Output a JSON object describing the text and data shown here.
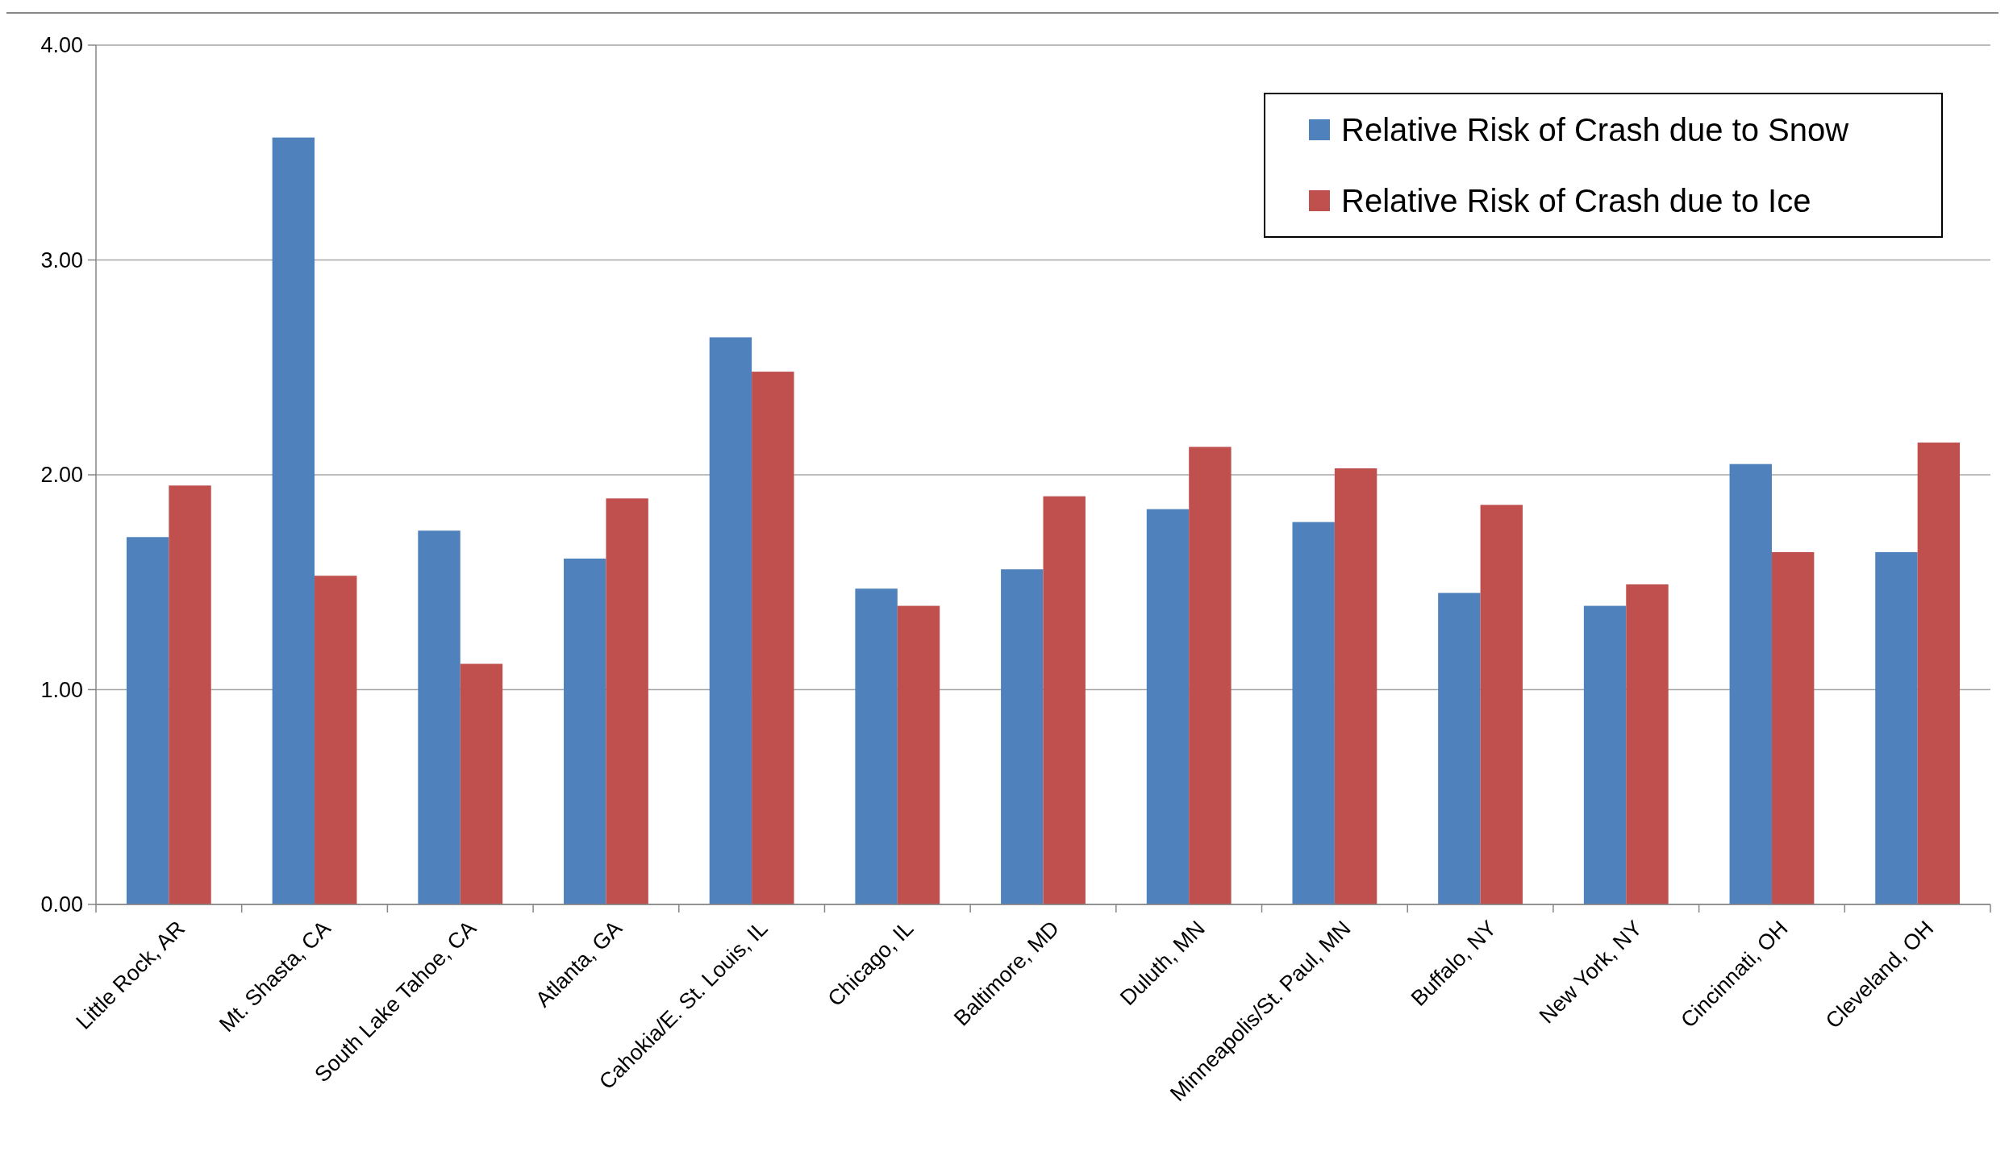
{
  "chart_data": {
    "type": "bar",
    "categories": [
      "Little Rock, AR",
      "Mt. Shasta, CA",
      "South Lake Tahoe, CA",
      "Atlanta, GA",
      "Cahokia/E. St. Louis, IL",
      "Chicago, IL",
      "Baltimore, MD",
      "Duluth, MN",
      "Minneapolis/St. Paul, MN",
      "Buffalo, NY",
      "New York, NY",
      "Cincinnati, OH",
      "Cleveland, OH"
    ],
    "series": [
      {
        "name": "Relative Risk of Crash due to Snow",
        "color": "#4f81bd",
        "values": [
          1.71,
          3.57,
          1.74,
          1.61,
          2.64,
          1.47,
          1.56,
          1.84,
          1.78,
          1.45,
          1.39,
          2.05,
          1.64
        ]
      },
      {
        "name": "Relative Risk of Crash due to Ice",
        "color": "#c0504d",
        "values": [
          1.95,
          1.53,
          1.12,
          1.89,
          2.48,
          1.39,
          1.9,
          2.13,
          2.03,
          1.86,
          1.49,
          1.64,
          2.15
        ]
      }
    ],
    "ylim": [
      0,
      4
    ],
    "yticks": [
      {
        "value": 0,
        "label": "0.00"
      },
      {
        "value": 1,
        "label": "1.00"
      },
      {
        "value": 2,
        "label": "2.00"
      },
      {
        "value": 3,
        "label": "3.00"
      },
      {
        "value": 4,
        "label": "4.00"
      }
    ],
    "grid": "y",
    "legend": "top right"
  }
}
